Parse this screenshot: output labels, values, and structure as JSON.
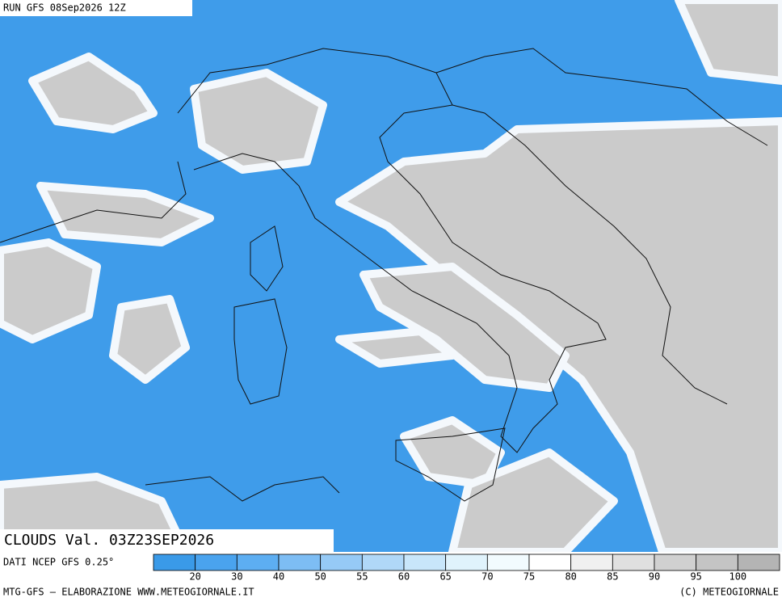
{
  "header": {
    "run": "RUN GFS 08Sep2026 12Z"
  },
  "legend": {
    "title": "CLOUDS Val. 03Z23SEP2026",
    "source": "DATI NCEP GFS 0.25°",
    "ticks": [
      20,
      30,
      40,
      50,
      55,
      60,
      65,
      70,
      75,
      80,
      85,
      90,
      95,
      100
    ],
    "colors": [
      "#3a9ae8",
      "#4aa3ee",
      "#5daef2",
      "#7dbdf4",
      "#96caf6",
      "#b0d8f8",
      "#c8e6fa",
      "#e0f3fc",
      "#f2fbfe",
      "#ffffff",
      "#f0f0f0",
      "#e0e0e0",
      "#d0d0d0",
      "#c4c4c4",
      "#b4b4b4"
    ]
  },
  "footer": {
    "left": "MTG-GFS — ELABORAZIONE WWW.METEOGIORNALE.IT",
    "right": "(C) METEOGIORNALE"
  }
}
